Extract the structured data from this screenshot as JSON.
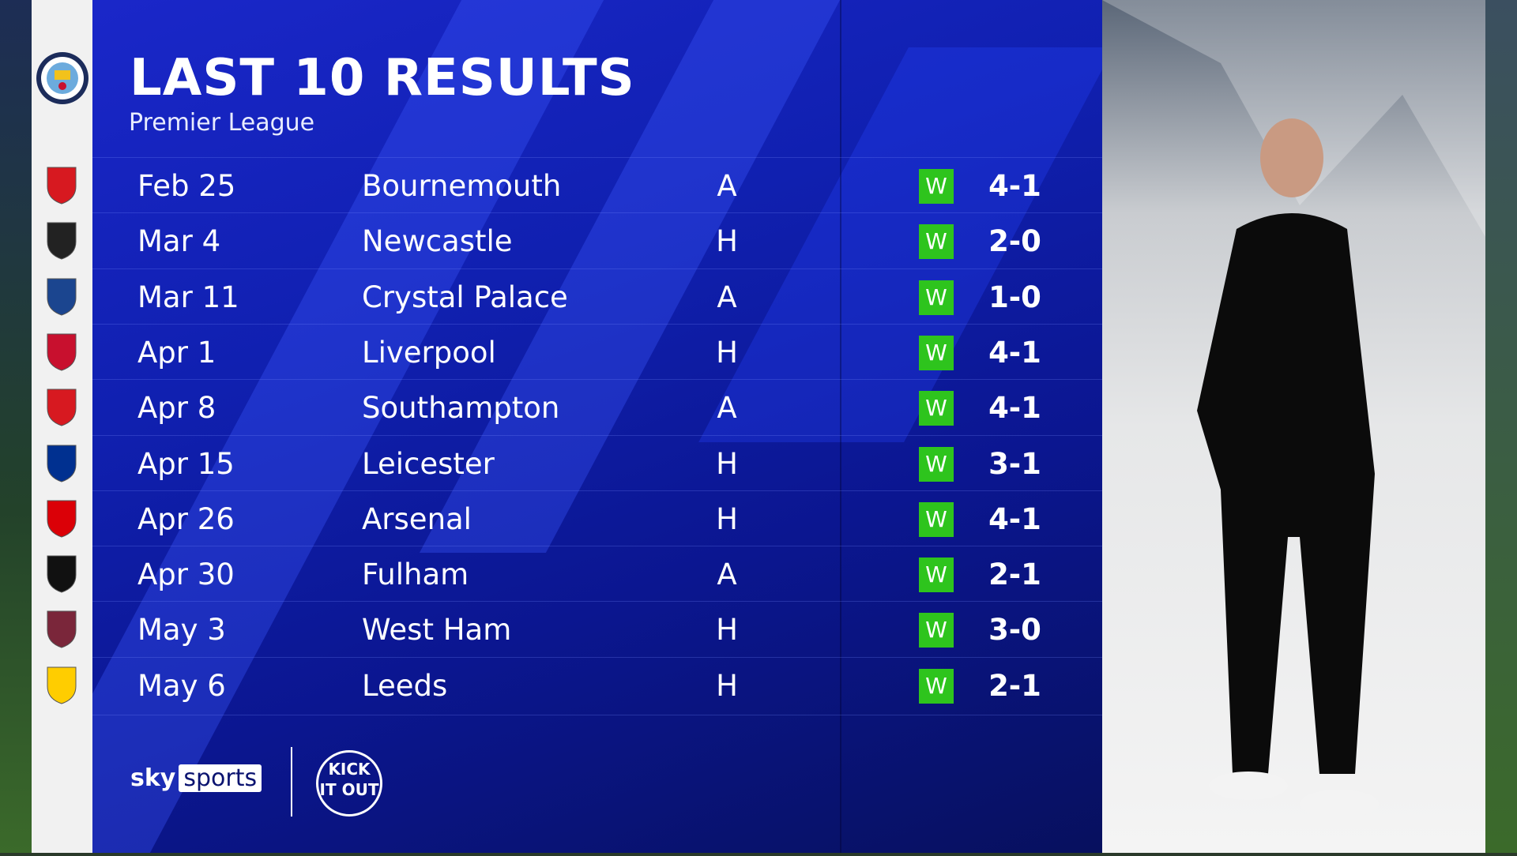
{
  "title": "LAST 10 RESULTS",
  "subtitle": "Premier League",
  "team_crest": "manchester-city-crest",
  "colors": {
    "panel": "#1020b0",
    "win": "#2ec41d",
    "strip": "#f1f1f1"
  },
  "results": [
    {
      "date": "Feb 25",
      "opponent": "Bournemouth",
      "venue": "A",
      "result": "W",
      "score": "4-1",
      "crest": "bournemouth-crest",
      "crest_color": "#d71920"
    },
    {
      "date": "Mar 4",
      "opponent": "Newcastle",
      "venue": "H",
      "result": "W",
      "score": "2-0",
      "crest": "newcastle-crest",
      "crest_color": "#222222"
    },
    {
      "date": "Mar 11",
      "opponent": "Crystal Palace",
      "venue": "A",
      "result": "W",
      "score": "1-0",
      "crest": "crystal-palace-crest",
      "crest_color": "#1b458f"
    },
    {
      "date": "Apr 1",
      "opponent": "Liverpool",
      "venue": "H",
      "result": "W",
      "score": "4-1",
      "crest": "liverpool-crest",
      "crest_color": "#c8102e"
    },
    {
      "date": "Apr 8",
      "opponent": "Southampton",
      "venue": "A",
      "result": "W",
      "score": "4-1",
      "crest": "southampton-crest",
      "crest_color": "#d71920"
    },
    {
      "date": "Apr 15",
      "opponent": "Leicester",
      "venue": "H",
      "result": "W",
      "score": "3-1",
      "crest": "leicester-crest",
      "crest_color": "#003090"
    },
    {
      "date": "Apr 26",
      "opponent": "Arsenal",
      "venue": "H",
      "result": "W",
      "score": "4-1",
      "crest": "arsenal-crest",
      "crest_color": "#db0007"
    },
    {
      "date": "Apr 30",
      "opponent": "Fulham",
      "venue": "A",
      "result": "W",
      "score": "2-1",
      "crest": "fulham-crest",
      "crest_color": "#111111"
    },
    {
      "date": "May 3",
      "opponent": "West Ham",
      "venue": "H",
      "result": "W",
      "score": "3-0",
      "crest": "west-ham-crest",
      "crest_color": "#7a263a"
    },
    {
      "date": "May 6",
      "opponent": "Leeds",
      "venue": "H",
      "result": "W",
      "score": "2-1",
      "crest": "leeds-crest",
      "crest_color": "#ffcd00"
    }
  ],
  "footer": {
    "sky": "sky",
    "sports": "sports",
    "kick_it_out": "KICK IT OUT"
  }
}
